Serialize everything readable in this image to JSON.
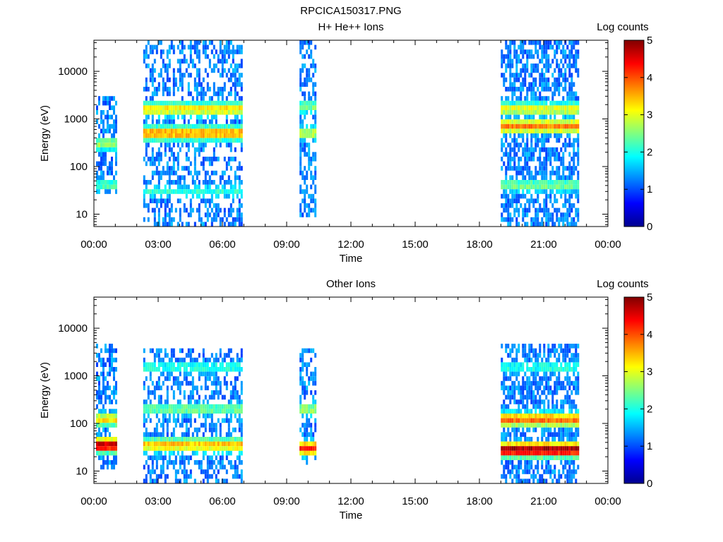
{
  "figure_title": "RPCICA150317.PNG",
  "colors": {
    "colormap": [
      "#00008f",
      "#0000ff",
      "#0080ff",
      "#00ffff",
      "#80ff80",
      "#ffff00",
      "#ff8000",
      "#ff0000",
      "#800000"
    ]
  },
  "chart_data": [
    {
      "type": "heatmap",
      "title": "H+ He++ Ions",
      "xlabel": "Time",
      "ylabel": "Energy (eV)",
      "x_ticks": [
        "00:00",
        "03:00",
        "06:00",
        "09:00",
        "12:00",
        "15:00",
        "18:00",
        "21:00",
        "00:00"
      ],
      "xlim_hours": [
        0,
        24
      ],
      "y_ticks": [
        {
          "label": "10",
          "value": 10
        },
        {
          "label": "100",
          "value": 100
        },
        {
          "label": "1000",
          "value": 1000
        },
        {
          "label": "10000",
          "value": 10000
        }
      ],
      "y_scale": "log",
      "ylim_ev": [
        5.5,
        45000
      ],
      "colorbar": {
        "label": "Log counts",
        "ticks": [
          "0",
          "1",
          "2",
          "3",
          "4",
          "5"
        ],
        "range": [
          0,
          5
        ]
      },
      "bursts": [
        {
          "start_h": 0.1,
          "end_h": 1.0,
          "e_min": 25,
          "e_max": 3000,
          "bands": [
            {
              "e": 40,
              "level": 2.0
            },
            {
              "e": 300,
              "level": 2.4
            }
          ],
          "density": 0.55
        },
        {
          "start_h": 2.3,
          "end_h": 6.9,
          "e_min": 6,
          "e_max": 42000,
          "bands": [
            {
              "e": 1600,
              "level": 3.0
            },
            {
              "e": 500,
              "level": 3.4
            },
            {
              "e": 30,
              "level": 1.8
            }
          ],
          "density": 0.45
        },
        {
          "start_h": 9.6,
          "end_h": 10.3,
          "e_min": 8,
          "e_max": 42000,
          "bands": [
            {
              "e": 500,
              "level": 2.6
            },
            {
              "e": 1800,
              "level": 2.2
            }
          ],
          "density": 0.55
        },
        {
          "start_h": 19.0,
          "end_h": 22.6,
          "e_min": 6,
          "e_max": 42000,
          "bands": [
            {
              "e": 700,
              "level": 3.5
            },
            {
              "e": 1600,
              "level": 2.8
            },
            {
              "e": 40,
              "level": 2.2
            }
          ],
          "density": 0.65
        }
      ]
    },
    {
      "type": "heatmap",
      "title": "Other Ions",
      "xlabel": "Time",
      "ylabel": "Energy (eV)",
      "x_ticks": [
        "00:00",
        "03:00",
        "06:00",
        "09:00",
        "12:00",
        "15:00",
        "18:00",
        "21:00",
        "00:00"
      ],
      "xlim_hours": [
        0,
        24
      ],
      "y_ticks": [
        {
          "label": "10",
          "value": 10
        },
        {
          "label": "100",
          "value": 100
        },
        {
          "label": "1000",
          "value": 1000
        },
        {
          "label": "10000",
          "value": 10000
        }
      ],
      "y_scale": "log",
      "ylim_ev": [
        5.5,
        45000
      ],
      "colorbar": {
        "label": "Log counts",
        "ticks": [
          "0",
          "1",
          "2",
          "3",
          "4",
          "5"
        ],
        "range": [
          0,
          5
        ]
      },
      "bursts": [
        {
          "start_h": 0.1,
          "end_h": 1.0,
          "e_min": 12,
          "e_max": 5000,
          "bands": [
            {
              "e": 35,
              "level": 4.5
            },
            {
              "e": 120,
              "level": 3.0
            }
          ],
          "density": 0.55
        },
        {
          "start_h": 2.3,
          "end_h": 6.9,
          "e_min": 6,
          "e_max": 3500,
          "bands": [
            {
              "e": 35,
              "level": 3.2
            },
            {
              "e": 200,
              "level": 2.2
            },
            {
              "e": 1500,
              "level": 1.8
            }
          ],
          "density": 0.5
        },
        {
          "start_h": 9.6,
          "end_h": 10.3,
          "e_min": 14,
          "e_max": 3500,
          "bands": [
            {
              "e": 30,
              "level": 4.0
            },
            {
              "e": 200,
              "level": 2.4
            }
          ],
          "density": 0.55
        },
        {
          "start_h": 19.0,
          "end_h": 22.6,
          "e_min": 6,
          "e_max": 5000,
          "bands": [
            {
              "e": 28,
              "level": 4.6
            },
            {
              "e": 120,
              "level": 3.6
            },
            {
              "e": 1500,
              "level": 1.8
            }
          ],
          "density": 0.65
        }
      ]
    }
  ]
}
